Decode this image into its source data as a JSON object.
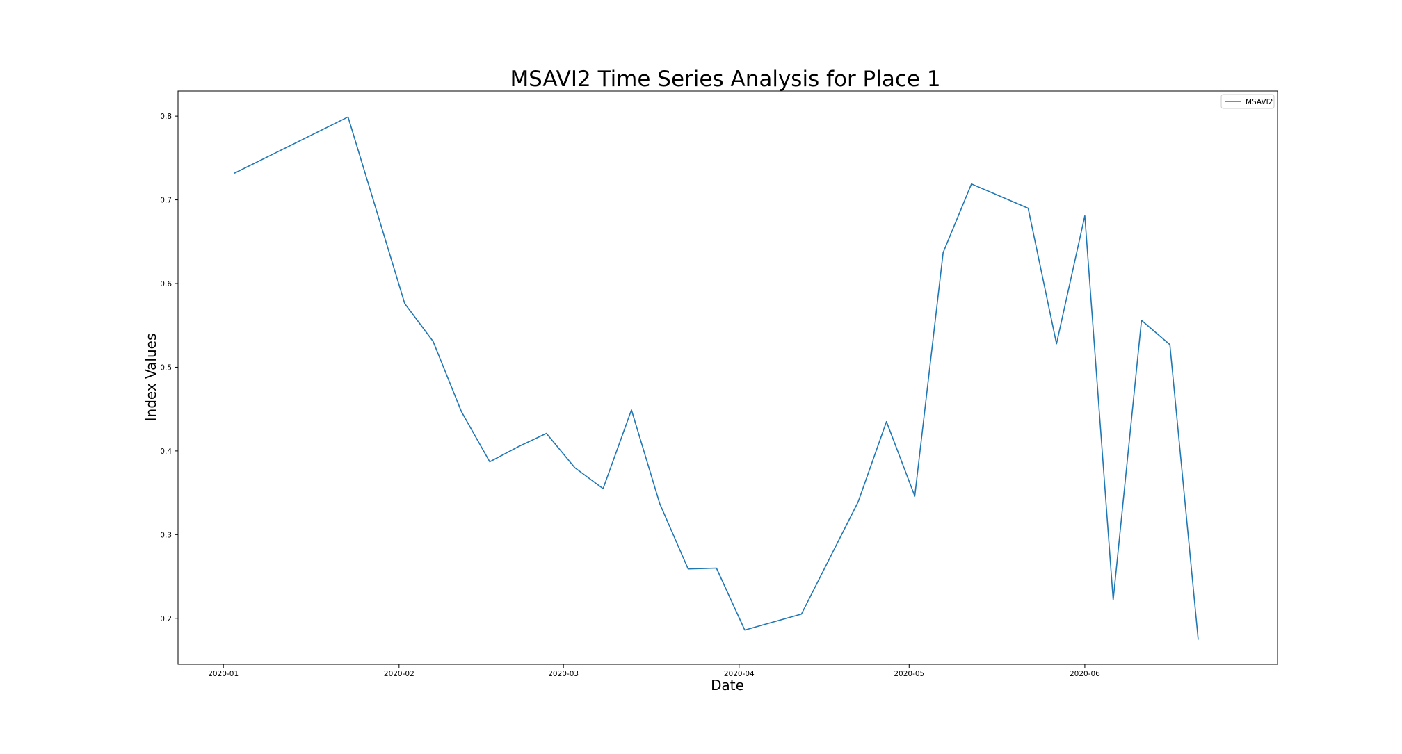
{
  "chart_data": {
    "type": "line",
    "title": "MSAVI2 Time Series Analysis for Place 1",
    "xlabel": "Date",
    "ylabel": "Index Values",
    "xlim": [
      "2019-12-24",
      "2020-07-05"
    ],
    "ylim": [
      0.145,
      0.83
    ],
    "x_ticks": [
      {
        "value": "2020-01-01",
        "label": "2020-01"
      },
      {
        "value": "2020-02-01",
        "label": "2020-02"
      },
      {
        "value": "2020-03-01",
        "label": "2020-03"
      },
      {
        "value": "2020-04-01",
        "label": "2020-04"
      },
      {
        "value": "2020-05-01",
        "label": "2020-05"
      },
      {
        "value": "2020-06-01",
        "label": "2020-06"
      }
    ],
    "y_ticks": [
      {
        "value": 0.2,
        "label": "0.2"
      },
      {
        "value": 0.3,
        "label": "0.3"
      },
      {
        "value": 0.4,
        "label": "0.4"
      },
      {
        "value": 0.5,
        "label": "0.5"
      },
      {
        "value": 0.6,
        "label": "0.6"
      },
      {
        "value": 0.7,
        "label": "0.7"
      },
      {
        "value": 0.8,
        "label": "0.8"
      }
    ],
    "grid": false,
    "legend_position": "top-right",
    "series": [
      {
        "name": "MSAVI2",
        "color": "#1f77b4",
        "x": [
          "2020-01-03",
          "2020-01-23",
          "2020-02-02",
          "2020-02-07",
          "2020-02-12",
          "2020-02-17",
          "2020-02-22",
          "2020-02-27",
          "2020-03-03",
          "2020-03-08",
          "2020-03-13",
          "2020-03-18",
          "2020-03-23",
          "2020-03-28",
          "2020-04-02",
          "2020-04-12",
          "2020-04-22",
          "2020-04-27",
          "2020-05-02",
          "2020-05-07",
          "2020-05-12",
          "2020-05-22",
          "2020-05-27",
          "2020-06-01",
          "2020-06-06",
          "2020-06-11",
          "2020-06-16",
          "2020-06-21"
        ],
        "values": [
          0.732,
          0.799,
          0.576,
          0.531,
          0.447,
          0.387,
          0.405,
          0.421,
          0.38,
          0.355,
          0.449,
          0.337,
          0.259,
          0.26,
          0.186,
          0.205,
          0.339,
          0.435,
          0.346,
          0.637,
          0.719,
          0.69,
          0.528,
          0.681,
          0.222,
          0.556,
          0.527,
          0.175
        ]
      }
    ]
  }
}
